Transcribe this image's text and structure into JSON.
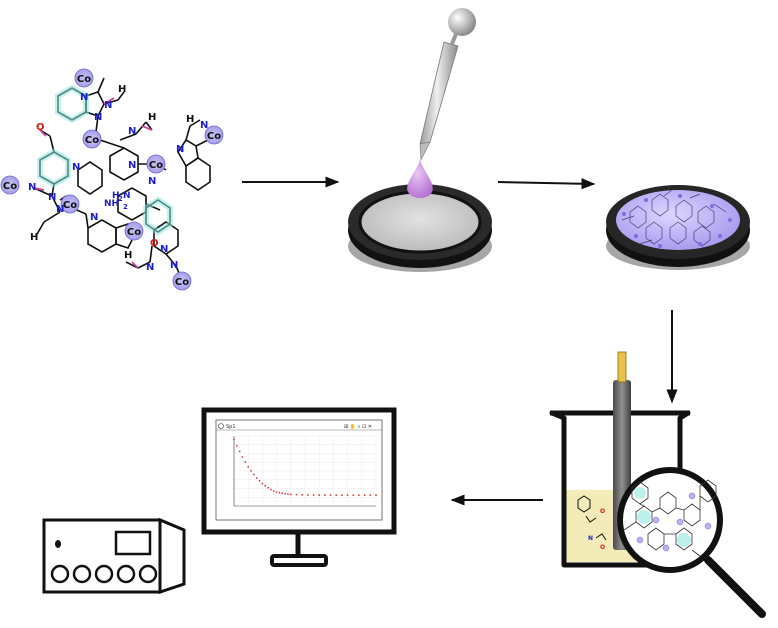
{
  "molecule": {
    "metal": "Co",
    "labels": {
      "n": "N",
      "h": "H",
      "o": "O",
      "nh2": "NH",
      "sub2": "2",
      "h2n": "H",
      "h2n_sub": "2",
      "h2n_n": "N"
    }
  },
  "monitor": {
    "window_title": "Sp1",
    "toolbar_icons": "⊞ ✋ ⌕ ⊡ ✕",
    "chart_data": {
      "type": "scatter",
      "series": [
        {
          "color": "#d23a3a",
          "points": [
            [
              0,
              9.5
            ],
            [
              50,
              8.6
            ],
            [
              100,
              7.8
            ],
            [
              150,
              7.0
            ],
            [
              200,
              6.3
            ],
            [
              250,
              5.6
            ],
            [
              300,
              5.0
            ],
            [
              350,
              4.5
            ],
            [
              400,
              4.0
            ],
            [
              450,
              3.6
            ],
            [
              500,
              3.2
            ],
            [
              550,
              2.9
            ],
            [
              600,
              2.6
            ],
            [
              650,
              2.35
            ],
            [
              700,
              2.15
            ],
            [
              750,
              2.0
            ],
            [
              800,
              1.9
            ],
            [
              850,
              1.82
            ],
            [
              900,
              1.75
            ],
            [
              950,
              1.7
            ],
            [
              1000,
              1.67
            ],
            [
              1100,
              1.63
            ],
            [
              1200,
              1.6
            ],
            [
              1300,
              1.58
            ],
            [
              1400,
              1.57
            ],
            [
              1500,
              1.56
            ],
            [
              1600,
              1.56
            ],
            [
              1700,
              1.55
            ],
            [
              1800,
              1.55
            ],
            [
              1900,
              1.55
            ],
            [
              2000,
              1.55
            ],
            [
              2100,
              1.55
            ],
            [
              2200,
              1.55
            ],
            [
              2300,
              1.55
            ],
            [
              2400,
              1.55
            ],
            [
              2500,
              1.55
            ]
          ]
        }
      ],
      "xlim": [
        0,
        2500
      ],
      "ylim": [
        0,
        10
      ],
      "grid": true
    }
  },
  "colors": {
    "arrow": "#111111",
    "drop": "#c98fe0",
    "electrode_coating": "#b8a8f0",
    "solution": "#f3ecb8",
    "metal_highlight": "#b9b3f0",
    "ring_highlight": "#8fe8e0",
    "nitrogen": "#1a1fc8",
    "oxygen": "#d21a1a",
    "pink_bond": "#d0409a"
  }
}
